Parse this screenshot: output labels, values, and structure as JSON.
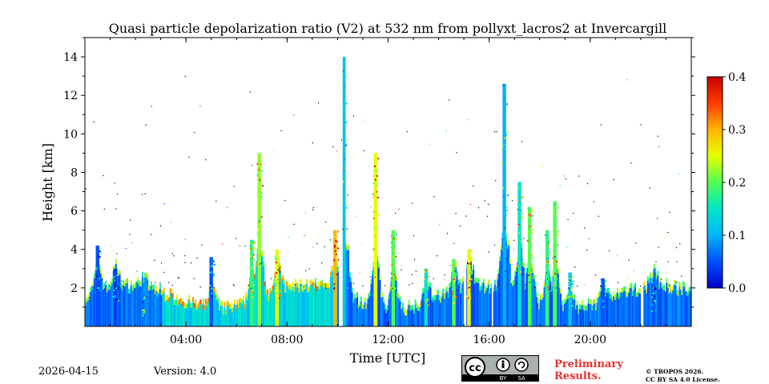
{
  "chart_data": {
    "type": "heatmap",
    "title": "Quasi particle depolarization ratio (V2) at 532 nm from pollyxt_lacros2 at Invercargill",
    "xlabel": "Time [UTC]",
    "ylabel": "Height [km]",
    "x_range_hours": [
      0,
      24
    ],
    "y_range_km": [
      0,
      15
    ],
    "x_ticks": [
      {
        "value": 4,
        "label": "04:00"
      },
      {
        "value": 8,
        "label": "08:00"
      },
      {
        "value": 12,
        "label": "12:00"
      },
      {
        "value": 16,
        "label": "16:00"
      },
      {
        "value": 20,
        "label": "20:00"
      }
    ],
    "y_ticks": [
      {
        "value": 2,
        "label": "2"
      },
      {
        "value": 4,
        "label": "4"
      },
      {
        "value": 6,
        "label": "6"
      },
      {
        "value": 8,
        "label": "8"
      },
      {
        "value": 10,
        "label": "10"
      },
      {
        "value": 12,
        "label": "12"
      },
      {
        "value": 14,
        "label": "14"
      }
    ],
    "colorbar": {
      "range": [
        0.0,
        0.4
      ],
      "ticks": [
        {
          "value": 0.0,
          "label": "0.0"
        },
        {
          "value": 0.1,
          "label": "0.1"
        },
        {
          "value": 0.2,
          "label": "0.2"
        },
        {
          "value": 0.3,
          "label": "0.3"
        },
        {
          "value": 0.4,
          "label": "0.4"
        }
      ],
      "colors": [
        "#0000c8",
        "#0050ff",
        "#00b4ff",
        "#00e6c8",
        "#50ff50",
        "#e6ff00",
        "#ffb400",
        "#ff3c00",
        "#c80000"
      ]
    },
    "plumes": [
      {
        "t": 0.5,
        "top": 4.2,
        "value": 0.05
      },
      {
        "t": 1.2,
        "top": 3.0,
        "value": 0.04
      },
      {
        "t": 2.3,
        "top": 1.6,
        "value": 0.07
      },
      {
        "t": 5.0,
        "top": 3.6,
        "value": 0.05
      },
      {
        "t": 6.6,
        "top": 4.5,
        "value": 0.18
      },
      {
        "t": 6.9,
        "top": 9.0,
        "value": 0.22
      },
      {
        "t": 7.6,
        "top": 4.0,
        "value": 0.25
      },
      {
        "t": 9.9,
        "top": 5.0,
        "value": 0.3
      },
      {
        "t": 10.25,
        "top": 14.0,
        "value": 0.12
      },
      {
        "t": 11.5,
        "top": 9.0,
        "value": 0.25
      },
      {
        "t": 12.2,
        "top": 5.0,
        "value": 0.2
      },
      {
        "t": 13.5,
        "top": 3.0,
        "value": 0.15
      },
      {
        "t": 14.6,
        "top": 3.5,
        "value": 0.2
      },
      {
        "t": 15.2,
        "top": 4.0,
        "value": 0.25
      },
      {
        "t": 16.6,
        "top": 12.6,
        "value": 0.1
      },
      {
        "t": 17.2,
        "top": 7.5,
        "value": 0.15
      },
      {
        "t": 17.6,
        "top": 6.2,
        "value": 0.2
      },
      {
        "t": 18.3,
        "top": 5.0,
        "value": 0.18
      },
      {
        "t": 18.6,
        "top": 6.5,
        "value": 0.2
      },
      {
        "t": 19.2,
        "top": 2.8,
        "value": 0.12
      },
      {
        "t": 20.5,
        "top": 2.5,
        "value": 0.05
      },
      {
        "t": 22.5,
        "top": 2.2,
        "value": 0.05
      }
    ],
    "data_gaps_hours": [
      [
        10.05,
        10.2
      ],
      [
        15.0,
        15.08
      ],
      [
        16.1,
        16.15
      ],
      [
        22.0,
        22.1
      ]
    ]
  },
  "footer": {
    "date": "2026-04-15",
    "version": "Version: 4.0",
    "preliminary_line1": "Preliminary",
    "preliminary_line2": "Results.",
    "copyright_line1": "© TROPOS 2026.",
    "copyright_line2": "CC BY SA 4.0 License.",
    "cc_by": "BY",
    "cc_sa": "SA"
  }
}
